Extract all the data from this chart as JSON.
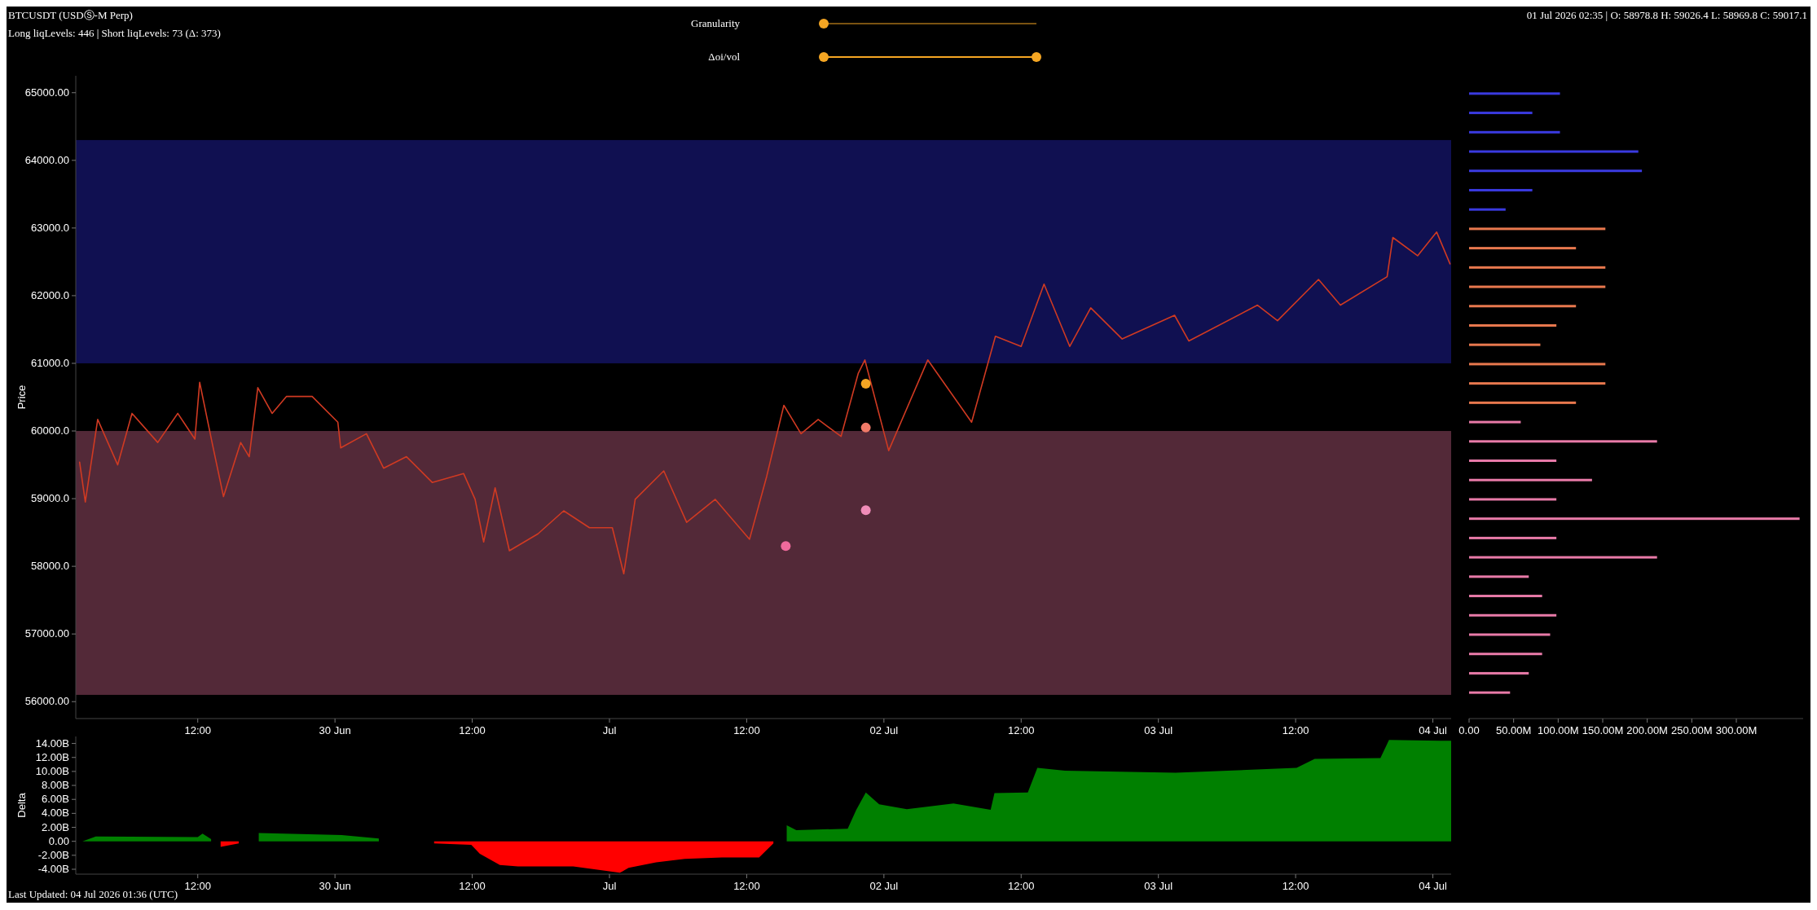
{
  "chart_data": [
    {
      "type": "line",
      "title": "BTCUSDT (USDⓈ-M Perp)",
      "subtitle": "Long liqLevels: 446 | Short liqLevels: 73 (Δ: 373)",
      "ylabel": "Price",
      "annotations": [
        "01 Jul 2026 02:35 | O: 58978.8 H: 59026.4 L: 58969.8 C: 59017.1",
        "Granularity",
        "Δoi/vol"
      ],
      "x": [
        "2026-06-29T01:40",
        "2026-06-29T02:10",
        "2026-06-29T03:15",
        "2026-06-29T05:00",
        "2026-06-29T06:15",
        "2026-06-29T08:30",
        "2026-06-29T10:15",
        "2026-06-29T11:45",
        "2026-06-29T12:10",
        "2026-06-29T13:15",
        "2026-06-29T14:15",
        "2026-06-29T15:45",
        "2026-06-29T16:30",
        "2026-06-29T17:15",
        "2026-06-29T18:30",
        "2026-06-29T19:45",
        "2026-06-29T22:00",
        "2026-06-30T00:15",
        "2026-06-30T00:30",
        "2026-06-30T02:45",
        "2026-06-30T04:15",
        "2026-06-30T06:15",
        "2026-06-30T08:30",
        "2026-06-30T11:15",
        "2026-06-30T12:15",
        "2026-06-30T13:00",
        "2026-06-30T14:00",
        "2026-06-30T15:15",
        "2026-06-30T17:45",
        "2026-06-30T20:00",
        "2026-06-30T22:15",
        "2026-07-01T00:15",
        "2026-07-01T01:15",
        "2026-07-01T02:15",
        "2026-07-01T04:45",
        "2026-07-01T06:45",
        "2026-07-01T09:15",
        "2026-07-01T12:15",
        "2026-07-01T13:45",
        "2026-07-01T15:15",
        "2026-07-01T16:45",
        "2026-07-01T18:15",
        "2026-07-01T20:15",
        "2026-07-01T21:45",
        "2026-07-01T22:20",
        "2026-07-02T00:25",
        "2026-07-02T03:50",
        "2026-07-02T07:40",
        "2026-07-02T09:45",
        "2026-07-02T12:00",
        "2026-07-02T14:00",
        "2026-07-02T16:15",
        "2026-07-02T18:05",
        "2026-07-02T20:50",
        "2026-07-03T01:25",
        "2026-07-03T02:40",
        "2026-07-03T08:40",
        "2026-07-03T10:25",
        "2026-07-03T14:00",
        "2026-07-03T15:55",
        "2026-07-03T20:00",
        "2026-07-03T20:30",
        "2026-07-03T22:40",
        "2026-07-04T00:20",
        "2026-07-04T01:30"
      ],
      "series": [
        {
          "type": "line",
          "color": "#d03a22",
          "values": [
            59540,
            58950,
            60170,
            59500,
            60260,
            59830,
            60260,
            59880,
            60720,
            59830,
            59030,
            59830,
            59620,
            60640,
            60260,
            60510,
            60510,
            60130,
            59750,
            59960,
            59450,
            59620,
            59240,
            59370,
            58990,
            58360,
            59160,
            58230,
            58480,
            58820,
            58570,
            58570,
            57890,
            58990,
            59410,
            58650,
            58990,
            58400,
            59330,
            60380,
            59960,
            60170,
            59920,
            60850,
            61050,
            59710,
            61050,
            60130,
            61400,
            61250,
            62170,
            61250,
            61820,
            61360,
            61710,
            61330,
            61860,
            61630,
            62240,
            61860,
            62280,
            62860,
            62590,
            62940,
            62470
          ]
        },
        {
          "type": "scatter",
          "x": [
            "2026-07-01T22:25",
            "2026-07-01T22:25",
            "2026-07-01T22:25",
            "2026-07-01T15:25"
          ],
          "colors": [
            "#f5a623",
            "#f07a68",
            "#f08cb8",
            "#f06a9c"
          ],
          "values": [
            60700,
            60050,
            58830,
            58300
          ]
        }
      ],
      "bands": [
        {
          "axis": "y",
          "from": 61000,
          "to": 64300,
          "color": "#2323b4"
        },
        {
          "axis": "y",
          "from": 56100,
          "to": 60000,
          "color": "#b85a7c"
        }
      ],
      "xlim": [
        "2026-06-29T01:20",
        "2026-07-04T01:36"
      ],
      "xticks": [
        {
          "value": "2026-06-29T12:00",
          "label": "12:00"
        },
        {
          "value": "2026-06-30T00:00",
          "label": "30 Jun"
        },
        {
          "value": "2026-06-30T12:00",
          "label": "12:00"
        },
        {
          "value": "2026-07-01T00:00",
          "label": "Jul"
        },
        {
          "value": "2026-07-01T12:00",
          "label": "12:00"
        },
        {
          "value": "2026-07-02T00:00",
          "label": "02 Jul"
        },
        {
          "value": "2026-07-02T12:00",
          "label": "12:00"
        },
        {
          "value": "2026-07-03T00:00",
          "label": "03 Jul"
        },
        {
          "value": "2026-07-03T12:00",
          "label": "12:00"
        },
        {
          "value": "2026-07-04T00:00",
          "label": "04 Jul"
        }
      ],
      "ylim": [
        55750,
        65250
      ],
      "yticks": [
        {
          "value": 56000,
          "label": "56000.00"
        },
        {
          "value": 57000,
          "label": "57000.00"
        },
        {
          "value": 58000,
          "label": "58000.0"
        },
        {
          "value": 59000,
          "label": "59000.0"
        },
        {
          "value": 60000,
          "label": "60000.0"
        },
        {
          "value": 61000,
          "label": "61000.0"
        },
        {
          "value": 62000,
          "label": "62000.0"
        },
        {
          "value": 63000,
          "label": "63000.0"
        },
        {
          "value": 64000,
          "label": "64000.00"
        },
        {
          "value": 65000,
          "label": "65000.00"
        }
      ]
    },
    {
      "type": "bar",
      "orientation": "horizontal",
      "tick_labels": "x",
      "categories": [
        null,
        null,
        null,
        null,
        null,
        null,
        null,
        null,
        null,
        null,
        null,
        null,
        null,
        null,
        null,
        null,
        null,
        null,
        null,
        null,
        null,
        null,
        null,
        null,
        null,
        null,
        null,
        null,
        null,
        null,
        null,
        null
      ],
      "values": [
        102,
        71,
        102,
        190,
        194,
        71,
        41,
        153,
        120,
        153,
        153,
        120,
        98,
        80,
        153,
        153,
        120,
        58,
        211,
        98,
        138,
        98,
        371,
        98,
        211,
        67,
        82,
        98,
        91,
        82,
        67,
        46
      ],
      "colors": [
        "#3a3ae0",
        "#3a3ae0",
        "#3a3ae0",
        "#3a3ae0",
        "#3a3ae0",
        "#3a3ae0",
        "#3a3ae0",
        "#e8784e",
        "#e8784e",
        "#e8784e",
        "#e8784e",
        "#e8784e",
        "#e8784e",
        "#e8784e",
        "#e8784e",
        "#e8784e",
        "#e8784e",
        "#e87aa8",
        "#e87aa8",
        "#e87aa8",
        "#e87aa8",
        "#e87aa8",
        "#e87aa8",
        "#e87aa8",
        "#e87aa8",
        "#e87aa8",
        "#e87aa8",
        "#e87aa8",
        "#e87aa8",
        "#e87aa8",
        "#e87aa8",
        "#e87aa8"
      ],
      "xlim": [
        0,
        375
      ],
      "xticks": [
        {
          "value": 0,
          "label": "0.00"
        },
        {
          "value": 50,
          "label": "50.00M"
        },
        {
          "value": 100,
          "label": "100.00M"
        },
        {
          "value": 150,
          "label": "150.00M"
        },
        {
          "value": 200,
          "label": "200.00M"
        },
        {
          "value": 250,
          "label": "250.00M"
        },
        {
          "value": 300,
          "label": "300.00M"
        }
      ]
    },
    {
      "type": "area",
      "ylabel": "Delta",
      "annotations": [
        "Last Updated: 04 Jul 2026 01:36 (UTC)"
      ],
      "x": [
        "2026-06-29T01:55",
        "2026-06-29T03:05",
        "2026-06-29T12:00",
        "2026-06-29T12:25",
        "2026-06-29T13:10",
        "2026-06-29T14:00",
        "2026-06-29T15:35",
        "2026-06-29T17:20",
        "2026-06-30T00:35",
        "2026-06-30T03:50",
        "2026-06-30T08:40",
        "2026-06-30T11:55",
        "2026-06-30T12:40",
        "2026-06-30T14:25",
        "2026-06-30T16:00",
        "2026-06-30T20:50",
        "2026-07-01T00:55",
        "2026-07-01T01:40",
        "2026-07-01T04:05",
        "2026-07-01T06:35",
        "2026-07-01T09:50",
        "2026-07-01T13:05",
        "2026-07-01T14:20",
        "2026-07-01T15:30",
        "2026-07-01T16:20",
        "2026-07-01T20:50",
        "2026-07-01T21:35",
        "2026-07-01T22:25",
        "2026-07-01T23:35",
        "2026-07-02T02:00",
        "2026-07-02T06:05",
        "2026-07-02T09:20",
        "2026-07-02T09:40",
        "2026-07-02T12:35",
        "2026-07-02T13:25",
        "2026-07-02T15:50",
        "2026-07-03T01:30",
        "2026-07-03T12:05",
        "2026-07-03T13:40",
        "2026-07-03T19:25",
        "2026-07-03T20:10",
        "2026-07-04T00:40",
        "2026-07-04T01:36"
      ],
      "series": [
        {
          "color": "#008000",
          "values": [
            0,
            0.7,
            0.6,
            1.1,
            0.3,
            null,
            null,
            1.2,
            0.9,
            0.4,
            null,
            null,
            null,
            null,
            null,
            null,
            null,
            null,
            null,
            null,
            null,
            null,
            null,
            2.3,
            1.6,
            1.8,
            4.5,
            7.0,
            5.3,
            4.6,
            5.4,
            4.5,
            6.9,
            7.0,
            10.5,
            10.1,
            9.8,
            10.5,
            11.8,
            11.9,
            14.5,
            14.4,
            14.4
          ]
        },
        {
          "color": "#ff0000",
          "values": [
            null,
            null,
            null,
            null,
            null,
            -0.8,
            -0.3,
            null,
            null,
            null,
            -0.3,
            -0.5,
            -1.8,
            -3.4,
            -3.6,
            -3.6,
            -4.5,
            -3.8,
            -3.0,
            -2.5,
            -2.3,
            -2.3,
            -0.3,
            null,
            null,
            null,
            null,
            null,
            null,
            null,
            null,
            null,
            null,
            null,
            null,
            null,
            null,
            null,
            null,
            null,
            null,
            null,
            null
          ]
        }
      ],
      "xlim": [
        "2026-06-29T01:20",
        "2026-07-04T01:36"
      ],
      "xticks": [
        {
          "value": "2026-06-29T12:00",
          "label": "12:00"
        },
        {
          "value": "2026-06-30T00:00",
          "label": "30 Jun"
        },
        {
          "value": "2026-06-30T12:00",
          "label": "12:00"
        },
        {
          "value": "2026-07-01T00:00",
          "label": "Jul"
        },
        {
          "value": "2026-07-01T12:00",
          "label": "12:00"
        },
        {
          "value": "2026-07-02T00:00",
          "label": "02 Jul"
        },
        {
          "value": "2026-07-02T12:00",
          "label": "12:00"
        },
        {
          "value": "2026-07-03T00:00",
          "label": "03 Jul"
        },
        {
          "value": "2026-07-03T12:00",
          "label": "12:00"
        },
        {
          "value": "2026-07-04T00:00",
          "label": "04 Jul"
        }
      ],
      "ylim": [
        -4.7,
        15
      ],
      "yticks": [
        {
          "value": -4,
          "label": "-4.00B"
        },
        {
          "value": -2,
          "label": "-2.00B"
        },
        {
          "value": 0,
          "label": "0.00"
        },
        {
          "value": 2,
          "label": "2.00B"
        },
        {
          "value": 4,
          "label": "4.00B"
        },
        {
          "value": 6,
          "label": "6.00B"
        },
        {
          "value": 8,
          "label": "8.00B"
        },
        {
          "value": 10,
          "label": "10.00B"
        },
        {
          "value": 12,
          "label": "12.00B"
        },
        {
          "value": 14,
          "label": "14.00B"
        }
      ]
    }
  ]
}
